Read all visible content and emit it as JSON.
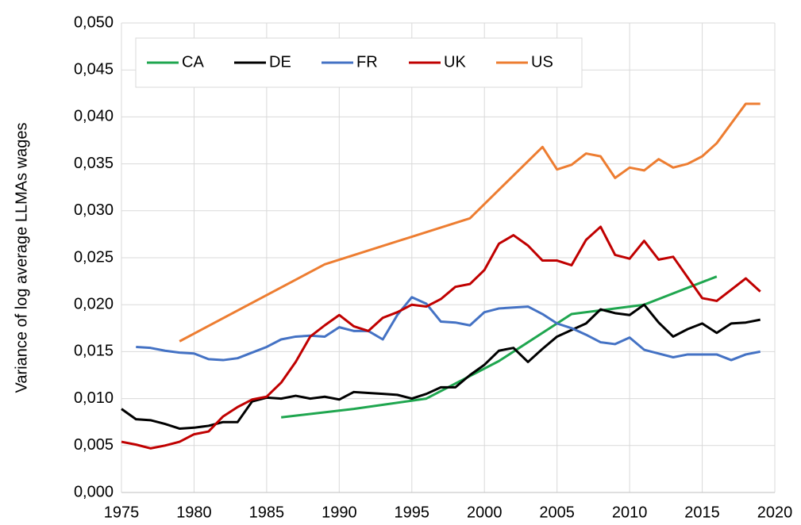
{
  "chart_data": {
    "type": "line",
    "y_label": "Variance of log average LLMAs wages",
    "xlim": [
      1975,
      2020
    ],
    "xticks": [
      1975,
      1980,
      1985,
      1990,
      1995,
      2000,
      2005,
      2010,
      2015,
      2020
    ],
    "ylim": [
      0,
      0.05
    ],
    "yticks": [
      {
        "value": 0,
        "label": "0,000"
      },
      {
        "value": 0.005,
        "label": "0,005"
      },
      {
        "value": 0.01,
        "label": "0,010"
      },
      {
        "value": 0.015,
        "label": "0,015"
      },
      {
        "value": 0.02,
        "label": "0,020"
      },
      {
        "value": 0.025,
        "label": "0,025"
      },
      {
        "value": 0.03,
        "label": "0,030"
      },
      {
        "value": 0.035,
        "label": "0,035"
      },
      {
        "value": 0.04,
        "label": "0,040"
      },
      {
        "value": 0.045,
        "label": "0,045"
      },
      {
        "value": 0.05,
        "label": "0,050"
      }
    ],
    "grid": true,
    "legend": "top-left",
    "series": [
      {
        "name": "CA",
        "color": "#1fa64f",
        "x": [
          1986,
          1991,
          1996,
          2001,
          2006,
          2011,
          2016
        ],
        "values": [
          0.008,
          0.0089,
          0.01,
          0.014,
          0.019,
          0.02,
          0.023
        ]
      },
      {
        "name": "DE",
        "color": "#000000",
        "x": [
          1975,
          1976,
          1977,
          1978,
          1979,
          1980,
          1981,
          1982,
          1983,
          1984,
          1985,
          1986,
          1987,
          1988,
          1989,
          1990,
          1991,
          1992,
          1993,
          1994,
          1995,
          1996,
          1997,
          1998,
          1999,
          2000,
          2001,
          2002,
          2003,
          2004,
          2005,
          2006,
          2007,
          2008,
          2009,
          2010,
          2011,
          2012,
          2013,
          2014,
          2015,
          2016,
          2017,
          2018,
          2019
        ],
        "values": [
          0.0089,
          0.0078,
          0.0077,
          0.0073,
          0.0068,
          0.0069,
          0.0071,
          0.0075,
          0.0075,
          0.0097,
          0.0101,
          0.01,
          0.0103,
          0.01,
          0.0102,
          0.0099,
          0.0107,
          0.0106,
          0.0105,
          0.0104,
          0.01,
          0.0105,
          0.0112,
          0.0112,
          0.0125,
          0.0136,
          0.0151,
          0.0154,
          0.0139,
          0.0153,
          0.0166,
          0.0173,
          0.018,
          0.0195,
          0.0191,
          0.0189,
          0.02,
          0.0181,
          0.0166,
          0.0174,
          0.018,
          0.017,
          0.018,
          0.0181,
          0.0184
        ]
      },
      {
        "name": "FR",
        "color": "#4472c4",
        "x": [
          1976,
          1977,
          1978,
          1979,
          1980,
          1981,
          1982,
          1983,
          1984,
          1985,
          1986,
          1987,
          1988,
          1989,
          1990,
          1991,
          1992,
          1993,
          1994,
          1995,
          1996,
          1997,
          1998,
          1999,
          2000,
          2001,
          2002,
          2003,
          2004,
          2005,
          2006,
          2007,
          2008,
          2009,
          2010,
          2011,
          2012,
          2013,
          2014,
          2015,
          2016,
          2017,
          2018,
          2019
        ],
        "values": [
          0.0155,
          0.0154,
          0.0151,
          0.0149,
          0.0148,
          0.0142,
          0.0141,
          0.0143,
          0.0149,
          0.0155,
          0.0163,
          0.0166,
          0.0167,
          0.0166,
          0.0176,
          0.0172,
          0.0172,
          0.0163,
          0.0189,
          0.0208,
          0.0201,
          0.0182,
          0.0181,
          0.0178,
          0.0192,
          0.0196,
          0.0197,
          0.0198,
          0.019,
          0.018,
          0.0175,
          0.0168,
          0.016,
          0.0158,
          0.0165,
          0.0152,
          0.0148,
          0.0144,
          0.0147,
          0.0147,
          0.0147,
          0.0141,
          0.0147,
          0.015
        ]
      },
      {
        "name": "UK",
        "color": "#c00000",
        "x": [
          1975,
          1976,
          1977,
          1978,
          1979,
          1980,
          1981,
          1982,
          1983,
          1984,
          1985,
          1986,
          1987,
          1988,
          1989,
          1990,
          1991,
          1992,
          1993,
          1994,
          1995,
          1996,
          1997,
          1998,
          1999,
          2000,
          2001,
          2002,
          2003,
          2004,
          2005,
          2006,
          2007,
          2008,
          2009,
          2010,
          2011,
          2012,
          2013,
          2014,
          2015,
          2016,
          2017,
          2018,
          2019
        ],
        "values": [
          0.0054,
          0.0051,
          0.0047,
          0.005,
          0.0054,
          0.0062,
          0.0065,
          0.0081,
          0.0091,
          0.0099,
          0.0102,
          0.0117,
          0.0139,
          0.0166,
          0.0178,
          0.0189,
          0.0177,
          0.0172,
          0.0186,
          0.0192,
          0.02,
          0.0198,
          0.0206,
          0.0219,
          0.0222,
          0.0237,
          0.0265,
          0.0274,
          0.0263,
          0.0247,
          0.0247,
          0.0242,
          0.0269,
          0.0283,
          0.0253,
          0.0249,
          0.0268,
          0.0248,
          0.0251,
          0.0229,
          0.0207,
          0.0204,
          0.0216,
          0.0228,
          0.0214
        ]
      },
      {
        "name": "US",
        "color": "#ed7d31",
        "x": [
          1979,
          1989,
          1999,
          2004,
          2005,
          2006,
          2007,
          2008,
          2009,
          2010,
          2011,
          2012,
          2013,
          2014,
          2015,
          2016,
          2017,
          2018,
          2019
        ],
        "values": [
          0.0161,
          0.0243,
          0.0292,
          0.0368,
          0.0344,
          0.0349,
          0.0361,
          0.0358,
          0.0335,
          0.0346,
          0.0343,
          0.0355,
          0.0346,
          0.035,
          0.0358,
          0.0372,
          0.0393,
          0.0414,
          0.0414
        ]
      }
    ]
  }
}
